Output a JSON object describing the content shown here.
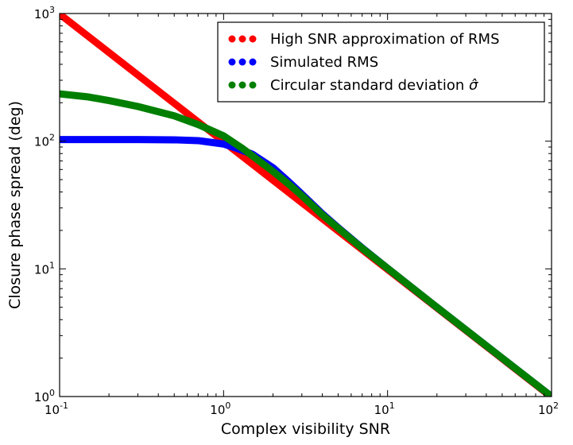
{
  "chart_data": {
    "type": "line",
    "xlabel": "Complex visibility SNR",
    "ylabel": "Closure phase spread (deg)",
    "x_scale": "log",
    "y_scale": "log",
    "xlim": [
      0.1,
      100
    ],
    "ylim": [
      1,
      1000
    ],
    "x_ticks": [
      {
        "value": 0.1,
        "base": "10",
        "exp": "-1"
      },
      {
        "value": 1,
        "base": "10",
        "exp": "0"
      },
      {
        "value": 10,
        "base": "10",
        "exp": "1"
      },
      {
        "value": 100,
        "base": "10",
        "exp": "2"
      }
    ],
    "y_ticks": [
      {
        "value": 1,
        "base": "10",
        "exp": "0"
      },
      {
        "value": 10,
        "base": "10",
        "exp": "1"
      },
      {
        "value": 100,
        "base": "10",
        "exp": "2"
      },
      {
        "value": 1000,
        "base": "10",
        "exp": "3"
      }
    ],
    "legend_position": "top-right",
    "series": [
      {
        "name": "High SNR approximation of RMS",
        "color": "#ff0000",
        "x": [
          0.1,
          0.2,
          0.5,
          1,
          2,
          5,
          10,
          20,
          50,
          100
        ],
        "y": [
          990,
          495,
          198,
          99,
          49.5,
          19.8,
          9.9,
          4.95,
          1.98,
          0.99
        ]
      },
      {
        "name": "Simulated RMS",
        "color": "#0000ff",
        "x": [
          0.1,
          0.2,
          0.3,
          0.5,
          0.7,
          1.0,
          1.2,
          1.5,
          2,
          2.5,
          3,
          4,
          5,
          7,
          10,
          20,
          50,
          100
        ],
        "y": [
          103,
          103,
          103,
          102.5,
          101,
          95,
          88,
          79,
          62,
          48,
          38.5,
          27,
          21,
          14.6,
          10.1,
          5.0,
          2.0,
          1.0
        ]
      },
      {
        "name": "Circular standard deviation σ̂",
        "legend_base": "Circular standard deviation ",
        "legend_symbol": "σ̂",
        "color": "#007f00",
        "x": [
          0.1,
          0.15,
          0.2,
          0.3,
          0.5,
          0.7,
          1.0,
          1.3,
          1.6,
          2,
          2.5,
          3,
          4,
          5,
          7,
          10,
          20,
          50,
          100
        ],
        "y": [
          235,
          222,
          208,
          187,
          158,
          135,
          110,
          88,
          72,
          58,
          46,
          37.5,
          26.5,
          20.8,
          14.5,
          10.1,
          5.0,
          2.0,
          1.0
        ]
      }
    ]
  }
}
